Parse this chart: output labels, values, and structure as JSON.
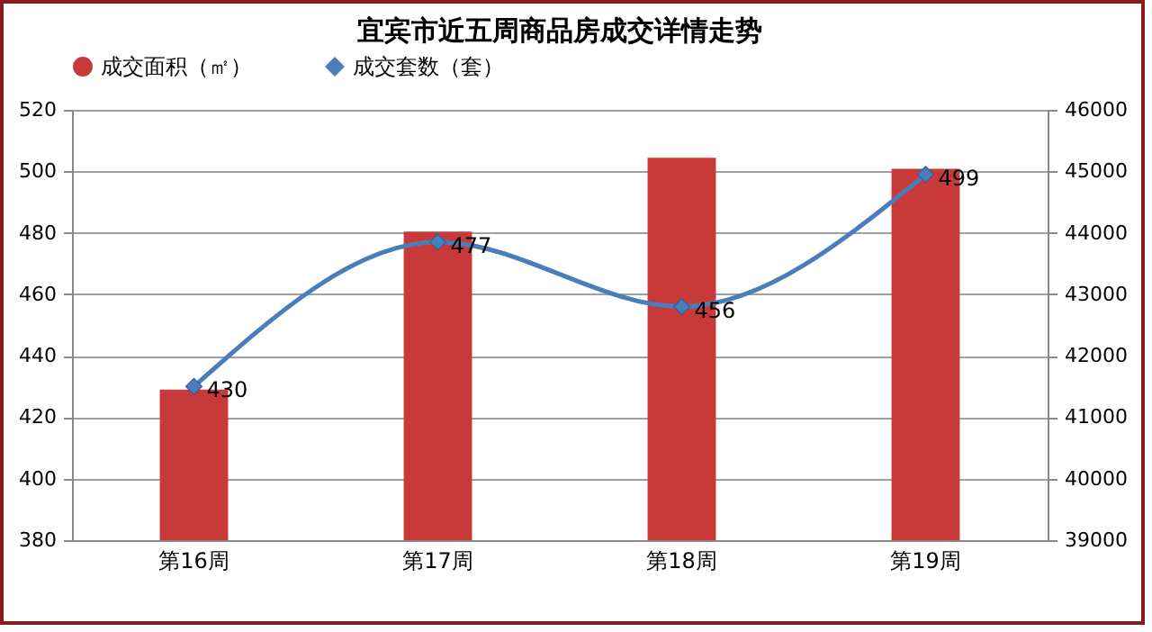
{
  "chart_data": {
    "type": "bar",
    "title": "宜宾市近五周商品房成交详情走势",
    "categories": [
      "第16周",
      "第17周",
      "第18周",
      "第19周"
    ],
    "series": [
      {
        "name": "成交面积（㎡）",
        "color": "#c83a3a",
        "axis": "y2",
        "values": [
          41450,
          44020,
          45220,
          45040
        ]
      },
      {
        "name": "成交套数（套）",
        "type": "line",
        "color": "#4a7ebb",
        "marker": "diamond",
        "values": [
          430,
          477,
          456,
          499
        ],
        "value_labels": [
          "430",
          "477",
          "456",
          "499"
        ]
      }
    ],
    "ylim": [
      380,
      520
    ],
    "yticks": [
      380,
      400,
      420,
      440,
      460,
      480,
      500,
      520
    ],
    "y2lim": [
      39000,
      46000
    ],
    "y2ticks": [
      39000,
      40000,
      41000,
      42000,
      43000,
      44000,
      45000,
      46000
    ],
    "grid": "y",
    "legend": "top"
  }
}
